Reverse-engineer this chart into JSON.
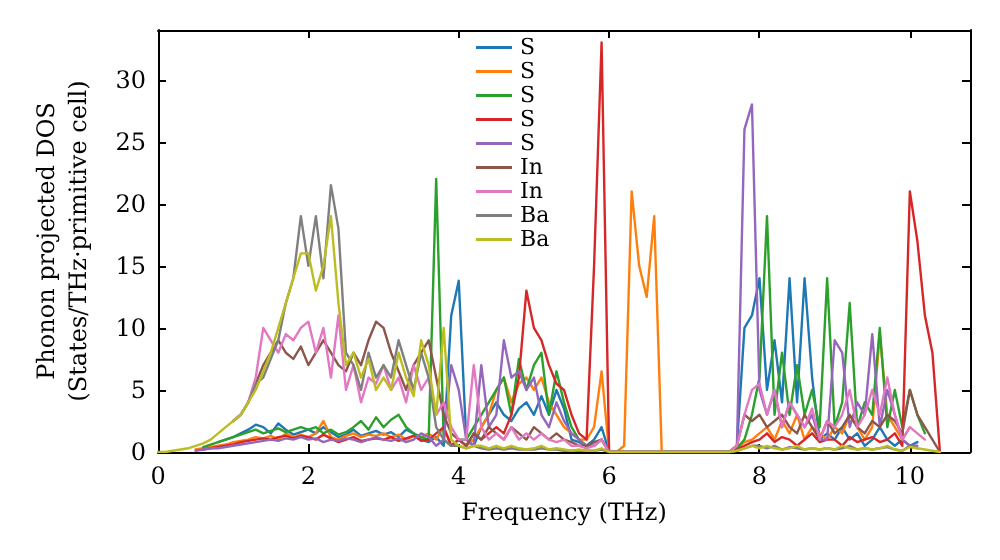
{
  "chart_data": {
    "type": "line",
    "xlabel": "Frequency (THz)",
    "ylabel": "Phonon projected DOS\n(States/THz·primitive cell)",
    "xlim": [
      0,
      10.8
    ],
    "ylim": [
      0,
      34
    ],
    "xticks": [
      0,
      2,
      4,
      6,
      8,
      10
    ],
    "yticks": [
      0,
      5,
      10,
      15,
      20,
      25,
      30
    ],
    "grid": false,
    "legend": "top",
    "marker": "none",
    "line_style": "solid",
    "x": [
      0,
      0.1,
      0.2,
      0.3,
      0.4,
      0.5,
      0.6,
      0.7,
      0.8,
      0.9,
      1,
      1.1,
      1.2,
      1.3,
      1.4,
      1.5,
      1.6,
      1.7,
      1.8,
      1.9,
      2,
      2.1,
      2.2,
      2.3,
      2.4,
      2.5,
      2.6,
      2.7,
      2.8,
      2.9,
      3,
      3.1,
      3.2,
      3.3,
      3.4,
      3.5,
      3.6,
      3.7,
      3.8,
      3.9,
      4,
      4.1,
      4.2,
      4.3,
      4.4,
      4.5,
      4.6,
      4.7,
      4.8,
      4.9,
      5,
      5.1,
      5.2,
      5.3,
      5.4,
      5.5,
      5.6,
      5.7,
      5.8,
      5.9,
      6,
      6.1,
      6.2,
      6.3,
      6.4,
      6.5,
      6.6,
      6.7,
      6.8,
      6.9,
      7,
      7.1,
      7.2,
      7.3,
      7.4,
      7.5,
      7.6,
      7.7,
      7.8,
      7.9,
      8,
      8.1,
      8.2,
      8.3,
      8.4,
      8.5,
      8.6,
      8.7,
      8.8,
      8.9,
      9,
      9.1,
      9.2,
      9.3,
      9.4,
      9.5,
      9.6,
      9.7,
      9.8,
      9.9,
      10,
      10.1,
      10.2,
      10.3,
      10.4
    ],
    "series": [
      {
        "name": "S",
        "color": "#1f77b4",
        "values": [
          null,
          null,
          null,
          null,
          null,
          null,
          null,
          null,
          0.8,
          1,
          1.2,
          1.5,
          1.8,
          2.2,
          2,
          1.5,
          2.3,
          1.8,
          1.4,
          1.6,
          1.8,
          1.5,
          2,
          1.6,
          1.2,
          1.4,
          1.8,
          1.3,
          1.5,
          1.7,
          1.4,
          1.6,
          1.2,
          1.8,
          1.5,
          1,
          0.8,
          1.2,
          0.5,
          11,
          13.8,
          1,
          0.5,
          2,
          3,
          4,
          3,
          2.5,
          3.5,
          4,
          3,
          4.5,
          3,
          5,
          3.5,
          1,
          0.8,
          0.5,
          1,
          2,
          0,
          0,
          0,
          0,
          0,
          0,
          0,
          0,
          0,
          0,
          0,
          0,
          0,
          0,
          0,
          0,
          0,
          0.5,
          10,
          11,
          14,
          5,
          9,
          4,
          14,
          4,
          14,
          6,
          1,
          1.5,
          1,
          2,
          1,
          1.5,
          0.5,
          1,
          2,
          1,
          0.5,
          1,
          0.5,
          0.8,
          null,
          null,
          null
        ]
      },
      {
        "name": "S",
        "color": "#ff7f0e",
        "values": [
          null,
          null,
          null,
          null,
          null,
          0.2,
          0.3,
          0.4,
          0.5,
          0.6,
          0.8,
          0.9,
          1,
          1.2,
          1.1,
          1.3,
          1,
          1.5,
          1.2,
          1.4,
          1.2,
          1.5,
          2.5,
          1.2,
          1,
          1.3,
          1.5,
          1.2,
          1.4,
          1.3,
          1.5,
          1.2,
          1.4,
          1,
          1.3,
          1.2,
          1.5,
          1,
          2,
          0.5,
          1,
          0.5,
          1,
          2,
          3,
          5,
          6,
          4,
          5.5,
          6,
          5,
          6,
          4,
          3,
          2,
          1.5,
          1,
          1,
          2,
          6.5,
          0,
          0,
          0.5,
          21,
          15,
          12.5,
          19,
          0,
          0,
          0,
          0,
          0,
          0,
          0,
          0,
          0,
          0,
          0.3,
          0.8,
          1,
          1.5,
          2,
          1,
          2.5,
          1.5,
          3,
          1,
          2,
          1.5,
          1,
          2,
          1.5,
          3,
          2,
          1,
          2,
          9.5,
          3,
          2,
          1,
          2,
          null,
          null,
          null,
          null
        ]
      },
      {
        "name": "S",
        "color": "#2ca02c",
        "values": [
          null,
          null,
          null,
          null,
          null,
          null,
          0.4,
          0.6,
          0.8,
          1,
          1.2,
          1.4,
          1.6,
          1.8,
          1.5,
          1.7,
          1.9,
          1.6,
          1.8,
          2,
          1.8,
          2,
          1.5,
          1.8,
          1.4,
          1.6,
          2,
          2.5,
          1.8,
          2.8,
          2,
          2.6,
          3,
          2,
          1.5,
          1.2,
          1,
          22,
          1,
          0.5,
          1,
          1,
          2,
          3,
          4,
          5,
          6,
          3,
          7.5,
          5,
          7,
          8,
          3,
          6.5,
          4,
          2,
          1,
          0.5,
          0.5,
          1,
          0,
          0,
          0,
          0,
          0,
          0,
          0,
          0,
          0,
          0,
          0,
          0,
          0,
          0,
          0,
          0,
          0,
          0.3,
          1,
          3,
          6,
          19,
          3,
          8,
          3,
          7,
          3,
          5,
          2,
          14,
          2,
          4,
          12,
          2,
          4,
          3,
          10,
          2,
          5,
          2,
          5,
          3,
          1.5,
          null,
          null
        ]
      },
      {
        "name": "S",
        "color": "#d62728",
        "values": [
          null,
          null,
          null,
          null,
          null,
          null,
          0.2,
          0.3,
          0.4,
          0.5,
          0.6,
          0.8,
          0.9,
          1,
          1.1,
          1,
          1.2,
          1.3,
          1.1,
          1.3,
          1.2,
          1,
          1.4,
          1.1,
          0.8,
          1,
          1.2,
          0.9,
          1,
          1.1,
          1,
          1.2,
          0.9,
          1.1,
          1.3,
          0.9,
          1,
          1.5,
          2,
          0.5,
          1,
          0.5,
          1.5,
          1,
          1.5,
          2,
          1.5,
          3,
          6,
          13,
          10,
          9,
          7,
          5.5,
          5,
          3,
          1.5,
          1,
          15,
          33,
          0,
          0,
          0,
          0,
          0,
          0,
          0,
          0,
          0,
          0,
          0,
          0,
          0,
          0,
          0,
          0,
          0,
          0.2,
          0.5,
          0.8,
          1,
          1.5,
          0.8,
          1.2,
          1,
          0.5,
          1,
          1.5,
          0.8,
          1,
          1,
          0.5,
          1.2,
          0.8,
          1,
          1.2,
          0.8,
          1,
          1.5,
          0.5,
          21,
          17,
          11,
          8,
          0
        ]
      },
      {
        "name": "S",
        "color": "#9467bd",
        "values": [
          null,
          null,
          null,
          null,
          null,
          0.1,
          0.2,
          0.3,
          0.3,
          0.4,
          0.5,
          0.6,
          0.7,
          0.8,
          0.9,
          1,
          0.9,
          1.1,
          1,
          1.2,
          1,
          1.1,
          0.8,
          1,
          0.9,
          1.1,
          1,
          0.8,
          1,
          1.2,
          1,
          0.9,
          1.1,
          0.8,
          1,
          1.5,
          1.2,
          0.5,
          1,
          7,
          5,
          1,
          0.5,
          7,
          2,
          3,
          9,
          6,
          6.5,
          5,
          6,
          3,
          2,
          4,
          2.5,
          1.5,
          1,
          0.5,
          0.5,
          1,
          0,
          0,
          0,
          0,
          0,
          0,
          0,
          0,
          0,
          0,
          0,
          0,
          0,
          0,
          0,
          0,
          0,
          0.5,
          26,
          28,
          5,
          3,
          5,
          2,
          4,
          3,
          2,
          3,
          1,
          1,
          9,
          8,
          2,
          4,
          3,
          9.5,
          2,
          5,
          3,
          1,
          0.5,
          0.5,
          null,
          null,
          null
        ]
      },
      {
        "name": "In",
        "color": "#8c564b",
        "values": [
          null,
          null,
          null,
          null,
          null,
          null,
          null,
          null,
          null,
          null,
          2.5,
          3,
          4,
          5.5,
          7,
          8,
          9,
          8,
          7.5,
          8.5,
          7,
          8,
          9,
          8,
          7,
          6.5,
          8,
          7,
          9,
          10.5,
          10,
          8,
          6.5,
          5,
          7,
          8,
          9,
          6,
          3,
          1.5,
          1,
          0.5,
          1.5,
          1,
          2,
          1.5,
          1,
          2,
          1.5,
          1,
          2,
          1.5,
          1,
          1.5,
          1,
          0.8,
          0.5,
          0.5,
          0.8,
          1,
          0,
          0,
          0,
          0,
          0,
          0,
          0,
          0,
          0,
          0,
          0,
          0,
          0,
          0,
          0,
          0,
          0,
          0.5,
          3,
          2.5,
          3,
          2,
          2.5,
          3,
          2,
          1.5,
          3,
          2,
          1,
          2.5,
          1.5,
          2,
          3,
          2,
          1.5,
          2.5,
          2,
          3,
          2.5,
          1.5,
          5,
          3,
          2,
          1,
          0
        ]
      },
      {
        "name": "In",
        "color": "#e377c2",
        "values": [
          null,
          null,
          null,
          null,
          null,
          null,
          null,
          null,
          null,
          null,
          2.5,
          3,
          4,
          6,
          10,
          9,
          8,
          9.5,
          9,
          10,
          10.5,
          8,
          10,
          6,
          11,
          5,
          7,
          4,
          6,
          5.5,
          7,
          5,
          6,
          4,
          7,
          5,
          6,
          3,
          4,
          2,
          1,
          1,
          7,
          2,
          1,
          1.5,
          1,
          2,
          1,
          1.5,
          1,
          1.5,
          1,
          0.8,
          1,
          0.5,
          0.5,
          0.3,
          0.5,
          1,
          0,
          0,
          0,
          0,
          0,
          0,
          0,
          0,
          0,
          0,
          0,
          0,
          0,
          0,
          0,
          0,
          0,
          0.5,
          3,
          5,
          5.5,
          3,
          5,
          2,
          4,
          3,
          2,
          3.5,
          1,
          2.5,
          2,
          3,
          5,
          2,
          3,
          5,
          3,
          6,
          3,
          1,
          2,
          1.5,
          1,
          null,
          null
        ]
      },
      {
        "name": "Ba",
        "color": "#7f7f7f",
        "values": [
          null,
          null,
          null,
          null,
          null,
          null,
          null,
          null,
          null,
          null,
          2.5,
          3,
          4,
          5.5,
          6,
          7.5,
          9,
          12,
          14,
          19,
          15,
          19,
          14,
          21.5,
          18,
          8,
          7,
          5,
          8,
          6,
          7,
          6,
          9,
          7,
          5,
          8,
          6,
          2,
          1,
          0.5,
          0.5,
          0.3,
          0.5,
          0.3,
          0.2,
          0.3,
          0.2,
          0.3,
          0.2,
          0.2,
          0.2,
          0.3,
          0.2,
          0.2,
          0.1,
          0.1,
          0.1,
          0.1,
          0.1,
          0.2,
          0,
          0,
          0,
          0,
          0,
          0,
          0,
          0,
          0,
          0,
          0,
          0,
          0,
          0,
          0,
          0,
          0,
          0.1,
          0.3,
          0.5,
          0.5,
          0.3,
          0.5,
          0.2,
          0.4,
          0.3,
          0.2,
          0.3,
          0.2,
          0.3,
          0.2,
          0.3,
          0.5,
          0.2,
          0.3,
          0.2,
          0.3,
          0.4,
          0.2,
          0.1,
          0.5,
          0.3,
          null,
          null,
          null
        ]
      },
      {
        "name": "Ba",
        "color": "#bcbd22",
        "values": [
          0,
          0,
          0.1,
          0.2,
          0.3,
          0.5,
          0.7,
          1,
          1.5,
          2,
          2.5,
          3,
          4,
          5,
          6.5,
          8,
          10,
          12,
          14,
          16,
          16,
          13,
          15,
          19,
          12,
          7,
          8,
          6,
          7.5,
          5,
          6,
          5,
          8,
          6,
          4.5,
          9,
          7,
          3,
          10,
          1,
          0.5,
          0.3,
          0.5,
          0.5,
          0.3,
          0.5,
          0.3,
          0.5,
          0.3,
          0.2,
          0.3,
          0.5,
          0.2,
          0.3,
          0.2,
          0.1,
          0.2,
          0.1,
          0.1,
          0.3,
          0,
          0,
          0,
          0,
          0,
          0,
          0,
          0,
          0,
          0,
          0,
          0,
          0,
          0,
          0,
          0,
          0,
          0.1,
          0.3,
          0.5,
          0.3,
          0.5,
          0.3,
          0.2,
          0.3,
          0.5,
          0.2,
          0.3,
          0.2,
          0.3,
          0.2,
          0.5,
          0.3,
          0.2,
          0.3,
          0.2,
          0.3,
          0.5,
          0.2,
          0.1,
          0.4,
          0.3,
          0.2,
          0.1,
          0
        ]
      }
    ]
  }
}
